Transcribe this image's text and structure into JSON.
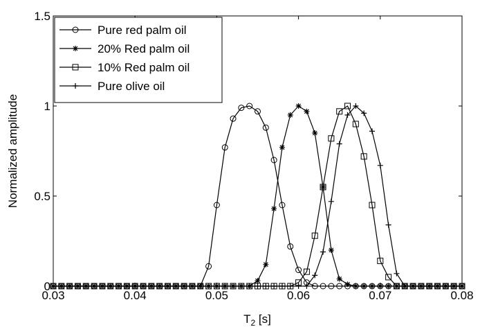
{
  "chart_data": {
    "type": "line",
    "title": "",
    "xlabel": "T",
    "xlabel_sub": "2",
    "xlabel_unit": " [s]",
    "ylabel": "Normalized amplitude",
    "xlim": [
      0.03,
      0.08
    ],
    "ylim": [
      0,
      1.5
    ],
    "xticks": [
      0.03,
      0.04,
      0.05,
      0.06,
      0.07,
      0.08
    ],
    "xtick_labels": [
      "0.03",
      "0.04",
      "0.05",
      "0.06",
      "0.07",
      "0.08"
    ],
    "yticks": [
      0,
      0.5,
      1,
      1.5
    ],
    "ytick_labels": [
      "0",
      "0.5",
      "1",
      "1.5"
    ],
    "grid": false,
    "legend_position": "top-left",
    "x_step": 0.001,
    "series": [
      {
        "name": "Pure red palm oil",
        "marker": "circle",
        "color": "#000000",
        "x": [
          0.048,
          0.049,
          0.05,
          0.051,
          0.052,
          0.053,
          0.054,
          0.055,
          0.056,
          0.057,
          0.058,
          0.059,
          0.06,
          0.061,
          0.062
        ],
        "y": [
          0.0,
          0.11,
          0.45,
          0.77,
          0.93,
          0.99,
          1.0,
          0.97,
          0.88,
          0.7,
          0.45,
          0.22,
          0.09,
          0.02,
          0.0
        ]
      },
      {
        "name": "20% Red palm oil",
        "marker": "star",
        "color": "#000000",
        "x": [
          0.054,
          0.055,
          0.056,
          0.057,
          0.058,
          0.059,
          0.06,
          0.061,
          0.062,
          0.063,
          0.064,
          0.065,
          0.066,
          0.067
        ],
        "y": [
          0.0,
          0.03,
          0.12,
          0.43,
          0.77,
          0.95,
          1.0,
          0.97,
          0.85,
          0.55,
          0.2,
          0.04,
          0.01,
          0.0
        ]
      },
      {
        "name": "10% Red palm oil",
        "marker": "square",
        "color": "#000000",
        "x": [
          0.059,
          0.06,
          0.061,
          0.062,
          0.063,
          0.064,
          0.065,
          0.066,
          0.067,
          0.068,
          0.069,
          0.07,
          0.071,
          0.072
        ],
        "y": [
          0.0,
          0.02,
          0.08,
          0.28,
          0.55,
          0.82,
          0.97,
          1.0,
          0.9,
          0.72,
          0.45,
          0.14,
          0.05,
          0.0
        ]
      },
      {
        "name": "Pure olive oil",
        "marker": "plus",
        "color": "#000000",
        "x": [
          0.061,
          0.062,
          0.063,
          0.064,
          0.065,
          0.066,
          0.067,
          0.068,
          0.069,
          0.07,
          0.071,
          0.072,
          0.073
        ],
        "y": [
          0.0,
          0.06,
          0.19,
          0.47,
          0.79,
          0.95,
          1.0,
          0.96,
          0.86,
          0.67,
          0.34,
          0.07,
          0.0
        ]
      }
    ]
  }
}
